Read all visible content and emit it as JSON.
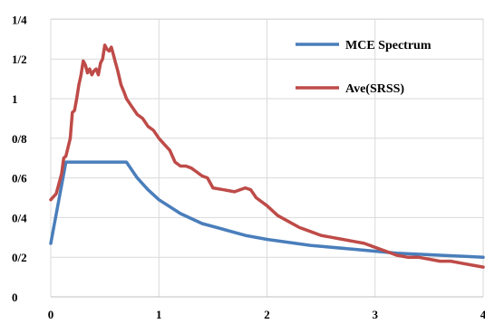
{
  "chart_data": {
    "type": "line",
    "title": "",
    "xlabel": "",
    "ylabel": "",
    "xlim": [
      0,
      4
    ],
    "ylim": [
      0,
      1.5
    ],
    "grid": true,
    "legend_position": "top-right",
    "x_ticks": [
      {
        "value": 0,
        "label": "0"
      },
      {
        "value": 1,
        "label": "1"
      },
      {
        "value": 2,
        "label": "2"
      },
      {
        "value": 3,
        "label": "3"
      },
      {
        "value": 4,
        "label": "4"
      }
    ],
    "y_ticks": [
      {
        "value": 0,
        "label": "0"
      },
      {
        "value": 0.2,
        "label": "0/2"
      },
      {
        "value": 0.4,
        "label": "0/4"
      },
      {
        "value": 0.6,
        "label": "0/6"
      },
      {
        "value": 0.8,
        "label": "0/8"
      },
      {
        "value": 1.0,
        "label": "1"
      },
      {
        "value": 1.2,
        "label": "1/2"
      },
      {
        "value": 1.4,
        "label": "1/4"
      }
    ],
    "series": [
      {
        "name": "MCE Spectrum",
        "color": "#4a7ebb",
        "x": [
          0,
          0.14,
          0.7,
          0.8,
          0.9,
          1.0,
          1.2,
          1.4,
          1.6,
          1.8,
          2.0,
          2.4,
          2.8,
          3.2,
          3.6,
          4.0
        ],
        "y": [
          0.27,
          0.68,
          0.68,
          0.6,
          0.54,
          0.49,
          0.42,
          0.37,
          0.34,
          0.31,
          0.29,
          0.26,
          0.24,
          0.22,
          0.21,
          0.2
        ]
      },
      {
        "name": "Ave(SRSS)",
        "color": "#be4b48",
        "x": [
          0,
          0.05,
          0.1,
          0.12,
          0.14,
          0.18,
          0.2,
          0.22,
          0.24,
          0.26,
          0.28,
          0.3,
          0.32,
          0.34,
          0.36,
          0.38,
          0.4,
          0.42,
          0.44,
          0.46,
          0.48,
          0.5,
          0.52,
          0.54,
          0.56,
          0.58,
          0.6,
          0.62,
          0.65,
          0.68,
          0.7,
          0.75,
          0.8,
          0.85,
          0.9,
          0.95,
          1.0,
          1.05,
          1.1,
          1.15,
          1.2,
          1.25,
          1.3,
          1.35,
          1.4,
          1.45,
          1.5,
          1.6,
          1.7,
          1.8,
          1.85,
          1.9,
          2.0,
          2.1,
          2.2,
          2.3,
          2.4,
          2.5,
          2.6,
          2.7,
          2.8,
          2.9,
          3.0,
          3.1,
          3.2,
          3.3,
          3.4,
          3.5,
          3.6,
          3.7,
          3.8,
          3.9,
          4.0
        ],
        "y": [
          0.49,
          0.52,
          0.62,
          0.7,
          0.71,
          0.8,
          0.93,
          0.94,
          1.0,
          1.07,
          1.12,
          1.19,
          1.17,
          1.13,
          1.15,
          1.12,
          1.14,
          1.15,
          1.12,
          1.18,
          1.2,
          1.27,
          1.25,
          1.24,
          1.26,
          1.22,
          1.18,
          1.14,
          1.07,
          1.03,
          1.0,
          0.96,
          0.92,
          0.9,
          0.86,
          0.84,
          0.8,
          0.77,
          0.74,
          0.68,
          0.66,
          0.66,
          0.65,
          0.63,
          0.61,
          0.6,
          0.55,
          0.54,
          0.53,
          0.55,
          0.54,
          0.5,
          0.46,
          0.41,
          0.38,
          0.35,
          0.33,
          0.31,
          0.3,
          0.29,
          0.28,
          0.27,
          0.25,
          0.23,
          0.21,
          0.2,
          0.2,
          0.19,
          0.18,
          0.18,
          0.17,
          0.16,
          0.15
        ]
      }
    ]
  }
}
